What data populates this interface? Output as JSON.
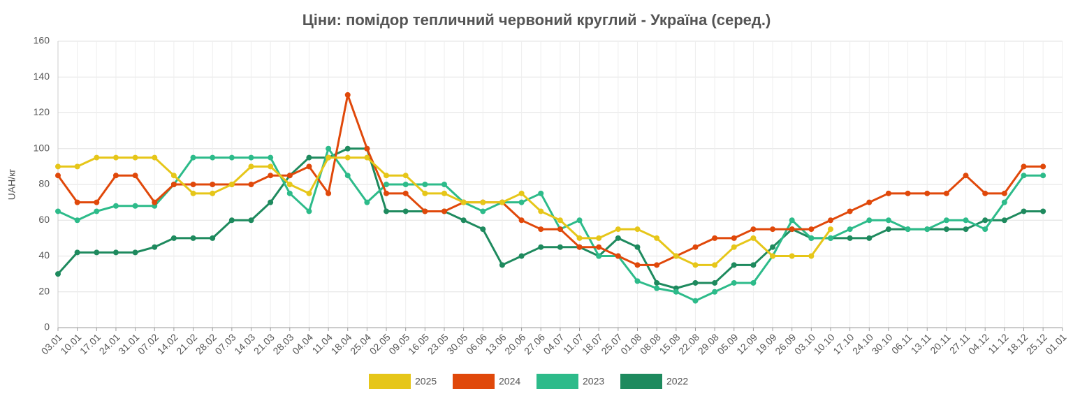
{
  "chart_data": {
    "type": "line",
    "title": "Ціни: помідор тепличний червоний круглий - Україна (серед.)",
    "y_label": "UAH/кг",
    "categories": [
      "03.01",
      "10.01",
      "17.01",
      "24.01",
      "31.01",
      "07.02",
      "14.02",
      "21.02",
      "28.02",
      "07.03",
      "14.03",
      "21.03",
      "28.03",
      "04.04",
      "11.04",
      "18.04",
      "25.04",
      "02.05",
      "09.05",
      "16.05",
      "23.05",
      "30.05",
      "06.06",
      "13.06",
      "20.06",
      "27.06",
      "04.07",
      "11.07",
      "18.07",
      "25.07",
      "01.08",
      "08.08",
      "15.08",
      "22.08",
      "29.08",
      "05.09",
      "12.09",
      "19.09",
      "26.09",
      "03.10",
      "10.10",
      "17.10",
      "24.10",
      "30.10",
      "06.11",
      "13.11",
      "20.11",
      "27.11",
      "04.12",
      "11.12",
      "18.12",
      "25.12",
      "01.01"
    ],
    "series": [
      {
        "name": "2025",
        "color": "#e6c619",
        "values": [
          90,
          90,
          95,
          95,
          95,
          95,
          85,
          75,
          75,
          80,
          90,
          90,
          80,
          75,
          95,
          95,
          95,
          85,
          85,
          75,
          75,
          70,
          70,
          70,
          75,
          65,
          60,
          50,
          50,
          55,
          55,
          50,
          40,
          35,
          35,
          45,
          50,
          40,
          40,
          40,
          55,
          null,
          null,
          null,
          null,
          null,
          null,
          null,
          null,
          null,
          null,
          null,
          null
        ]
      },
      {
        "name": "2024",
        "color": "#e0480a",
        "values": [
          85,
          70,
          70,
          85,
          85,
          70,
          80,
          80,
          80,
          80,
          80,
          85,
          85,
          90,
          75,
          130,
          100,
          75,
          75,
          65,
          65,
          70,
          70,
          70,
          60,
          55,
          55,
          45,
          45,
          40,
          35,
          35,
          40,
          45,
          50,
          50,
          55,
          55,
          55,
          55,
          60,
          65,
          70,
          75,
          75,
          75,
          75,
          85,
          75,
          75,
          90,
          90,
          null
        ]
      },
      {
        "name": "2023",
        "color": "#2dbb8a",
        "values": [
          65,
          60,
          65,
          68,
          68,
          68,
          80,
          95,
          95,
          95,
          95,
          95,
          75,
          65,
          100,
          85,
          70,
          80,
          80,
          80,
          80,
          70,
          65,
          70,
          70,
          75,
          55,
          60,
          40,
          40,
          26,
          22,
          20,
          15,
          20,
          25,
          25,
          40,
          60,
          50,
          50,
          55,
          60,
          60,
          55,
          55,
          60,
          60,
          55,
          70,
          85,
          85,
          null
        ]
      },
      {
        "name": "2022",
        "color": "#1e8a5e",
        "values": [
          30,
          42,
          42,
          42,
          42,
          45,
          50,
          50,
          50,
          60,
          60,
          70,
          85,
          95,
          95,
          100,
          100,
          65,
          65,
          65,
          65,
          60,
          55,
          35,
          40,
          45,
          45,
          45,
          40,
          50,
          45,
          25,
          22,
          25,
          25,
          35,
          35,
          45,
          55,
          50,
          50,
          50,
          50,
          55,
          55,
          55,
          55,
          55,
          60,
          60,
          65,
          65,
          null
        ]
      }
    ],
    "ylim": [
      0,
      160
    ],
    "yticks": [
      0,
      20,
      40,
      60,
      80,
      100,
      120,
      140,
      160
    ],
    "grid": true
  }
}
